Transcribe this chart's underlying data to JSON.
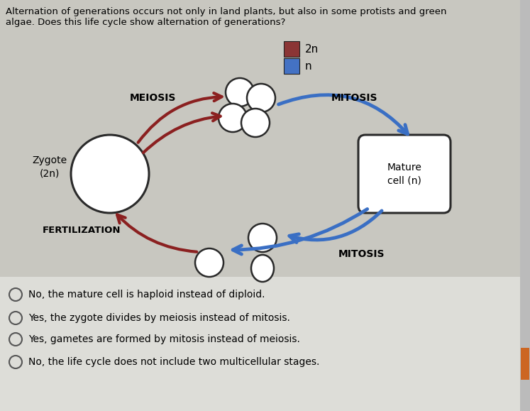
{
  "title_text": "Alternation of generations occurs not only in land plants, but also in some protists and green\nalgae. Does this life cycle show alternation of generations?",
  "legend_2n_color": "#8b3535",
  "legend_n_color": "#4472c4",
  "legend_2n_label": "2n",
  "legend_n_label": "n",
  "bg_color": "#d0cfc8",
  "bg_lower_color": "#e8e8e4",
  "zygote_label": "Zygote\n(2n)",
  "mature_label": "Mature\ncell (n)",
  "meiosis_label": "MEIOSIS",
  "mitosis_top_label": "MITOSIS",
  "mitosis_bottom_label": "MITOSIS",
  "fertilization_label": "FERTILIZATION",
  "arrow_2n_color": "#8b2020",
  "arrow_n_color": "#3a6fc4",
  "answer_options": [
    "No, the mature cell is haploid instead of diploid.",
    "Yes, the zygote divides by meiosis instead of mitosis.",
    "Yes, gametes are formed by mitosis instead of meiosis.",
    "No, the life cycle does not include two multicellular stages."
  ],
  "cell_edge_color": "#2a2a2a",
  "cell_fill_color": "white",
  "scrollbar_color": "#cc6622"
}
